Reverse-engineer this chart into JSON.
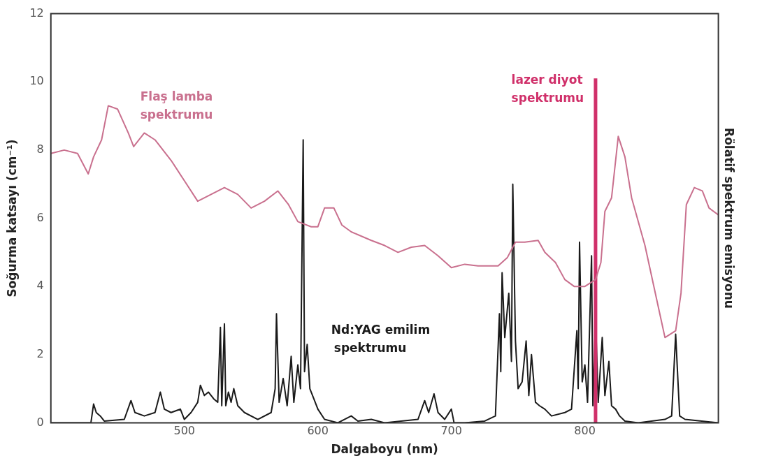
{
  "chart_data": {
    "type": "line",
    "xlabel": "Dalgaboyu (nm)",
    "ylabel": "Soğurma katsayı (cm⁻¹)",
    "y2label": "Rölatif spektrum emisyonu",
    "xlim": [
      400,
      900
    ],
    "xticks": [
      500,
      600,
      700,
      800
    ],
    "ylim": [
      0,
      12
    ],
    "yticks": [
      0,
      2,
      4,
      6,
      8,
      10,
      12
    ],
    "grid": false,
    "legend": false,
    "marker": "none",
    "line_style": "solid",
    "series": [
      {
        "name": "Flaş lamba spektrumu",
        "color": "#c9708e",
        "x": [
          400,
          410,
          420,
          428,
          432,
          438,
          443,
          450,
          458,
          462,
          470,
          478,
          490,
          500,
          510,
          520,
          530,
          540,
          550,
          560,
          570,
          578,
          585,
          595,
          600,
          605,
          612,
          618,
          625,
          640,
          650,
          660,
          670,
          680,
          690,
          700,
          710,
          720,
          735,
          742,
          748,
          755,
          765,
          770,
          778,
          785,
          792,
          800,
          808,
          812,
          815,
          820,
          825,
          830,
          835,
          845,
          855,
          860,
          868,
          872,
          876,
          882,
          888,
          893,
          900
        ],
        "values": [
          7.9,
          8.0,
          7.9,
          7.3,
          7.8,
          8.3,
          9.3,
          9.2,
          8.5,
          8.1,
          8.5,
          8.3,
          7.7,
          7.1,
          6.5,
          6.7,
          6.9,
          6.7,
          6.3,
          6.5,
          6.8,
          6.4,
          5.9,
          5.75,
          5.75,
          6.3,
          6.3,
          5.8,
          5.6,
          5.35,
          5.2,
          5.0,
          5.15,
          5.2,
          4.9,
          4.55,
          4.65,
          4.6,
          4.6,
          4.85,
          5.3,
          5.3,
          5.35,
          5.0,
          4.7,
          4.2,
          4.0,
          4.0,
          4.2,
          4.7,
          6.2,
          6.6,
          8.4,
          7.8,
          6.6,
          5.2,
          3.4,
          2.5,
          2.7,
          3.8,
          6.4,
          6.9,
          6.8,
          6.3,
          6.1
        ]
      },
      {
        "name": "lazer diyot spektrumu",
        "color": "#d0306a",
        "x": [
          808,
          808
        ],
        "values": [
          0,
          10.1
        ]
      },
      {
        "name": "Nd:YAG emilim spektrumu",
        "color": "#1a1a1a",
        "x": [
          400,
          430,
          432,
          434,
          437,
          440,
          455,
          460,
          463,
          470,
          478,
          482,
          485,
          490,
          497,
          500,
          505,
          510,
          512,
          515,
          518,
          522,
          525,
          527,
          528,
          530,
          531,
          533,
          535,
          537,
          540,
          545,
          555,
          565,
          568,
          569,
          571,
          574,
          577,
          580,
          582,
          585,
          587,
          589,
          590,
          592,
          594,
          597,
          600,
          605,
          615,
          625,
          630,
          640,
          650,
          675,
          680,
          683,
          687,
          690,
          695,
          700,
          702,
          710,
          725,
          733,
          736,
          737,
          738,
          740,
          743,
          745,
          746,
          748,
          750,
          753,
          756,
          758,
          760,
          763,
          766,
          770,
          775,
          785,
          790,
          794,
          795,
          796,
          798,
          800,
          802,
          805,
          806,
          808,
          810,
          813,
          815,
          818,
          820,
          823,
          826,
          830,
          840,
          860,
          865,
          868,
          871,
          875,
          900
        ],
        "values": [
          0,
          0,
          0.55,
          0.3,
          0.2,
          0.05,
          0.1,
          0.65,
          0.3,
          0.2,
          0.3,
          0.9,
          0.4,
          0.3,
          0.4,
          0.1,
          0.3,
          0.6,
          1.1,
          0.8,
          0.9,
          0.7,
          0.6,
          2.8,
          0.5,
          2.9,
          0.5,
          0.9,
          0.6,
          1.0,
          0.5,
          0.3,
          0.1,
          0.3,
          1.0,
          3.2,
          0.6,
          1.3,
          0.5,
          1.95,
          0.6,
          1.7,
          1.0,
          8.3,
          1.5,
          2.3,
          1.0,
          0.7,
          0.4,
          0.1,
          0.0,
          0.2,
          0.05,
          0.1,
          0.0,
          0.1,
          0.65,
          0.3,
          0.85,
          0.3,
          0.1,
          0.4,
          0.0,
          0.0,
          0.05,
          0.2,
          3.2,
          1.5,
          4.4,
          2.5,
          3.8,
          1.8,
          7.0,
          2.4,
          1.0,
          1.2,
          2.4,
          0.8,
          2.0,
          0.6,
          0.5,
          0.4,
          0.2,
          0.3,
          0.4,
          2.7,
          1.0,
          5.3,
          1.2,
          1.7,
          0.6,
          4.9,
          0.5,
          3.1,
          0.6,
          2.5,
          0.8,
          1.8,
          0.5,
          0.4,
          0.2,
          0.05,
          0.0,
          0.1,
          0.2,
          2.6,
          0.2,
          0.1,
          0.0
        ]
      }
    ]
  }
}
